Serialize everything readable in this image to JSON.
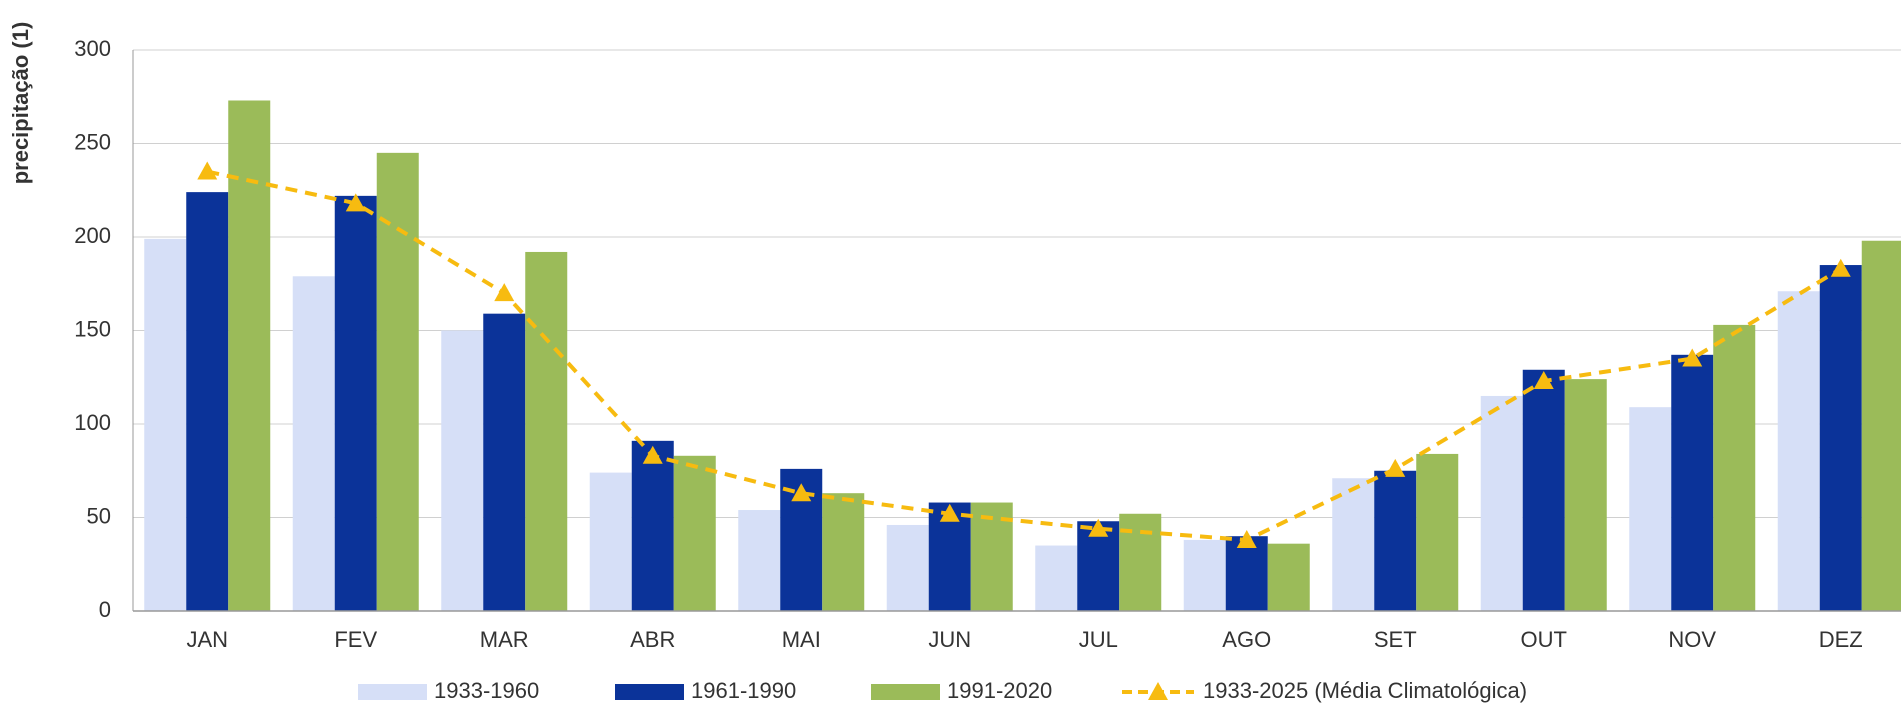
{
  "chart_data": {
    "type": "bar",
    "y_label": "precipitação (1)",
    "categories": [
      "JAN",
      "FEV",
      "MAR",
      "ABR",
      "MAI",
      "JUN",
      "JUL",
      "AGO",
      "SET",
      "OUT",
      "NOV",
      "DEZ"
    ],
    "series": [
      {
        "name": "1933-1960",
        "type": "bar",
        "color": "#d6dff7",
        "values": [
          199,
          179,
          150,
          74,
          54,
          46,
          35,
          38,
          71,
          115,
          109,
          171
        ]
      },
      {
        "name": "1961-1990",
        "type": "bar",
        "color": "#0b3399",
        "values": [
          224,
          222,
          159,
          91,
          76,
          58,
          48,
          40,
          75,
          129,
          137,
          185
        ]
      },
      {
        "name": "1991-2020",
        "type": "bar",
        "color": "#9bbb59",
        "values": [
          273,
          245,
          192,
          83,
          63,
          58,
          52,
          36,
          84,
          124,
          153,
          198
        ]
      },
      {
        "name": "1933-2025 (Média Climatológica)",
        "type": "line",
        "color": "#f7bb10",
        "values": [
          235,
          218,
          170,
          83,
          63,
          52,
          44,
          38,
          76,
          123,
          135,
          183
        ]
      }
    ],
    "ylim": [
      0,
      300
    ],
    "yticks": [
      0,
      50,
      100,
      150,
      200,
      250,
      300
    ],
    "grid": true,
    "legend": "bottom"
  }
}
